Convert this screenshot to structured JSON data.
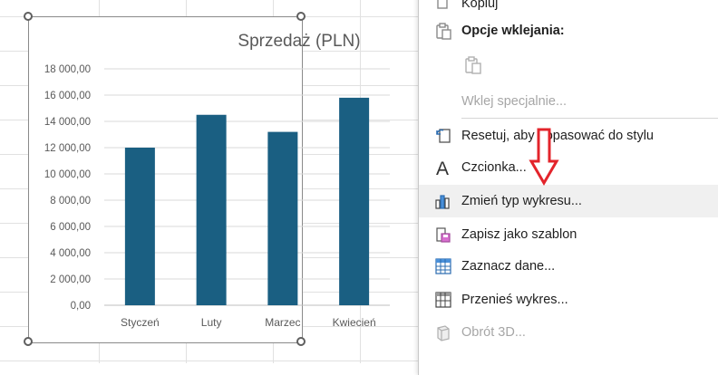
{
  "chart_data": {
    "type": "bar",
    "title": "Sprzedaż (PLN)",
    "categories": [
      "Styczeń",
      "Luty",
      "Marzec",
      "Kwiecień"
    ],
    "values": [
      12000,
      14500,
      13200,
      15800
    ],
    "ylim": [
      0,
      18000
    ],
    "yticks": [
      "0,00",
      "2 000,00",
      "4 000,00",
      "6 000,00",
      "8 000,00",
      "10 000,00",
      "12 000,00",
      "14 000,00",
      "16 000,00",
      "18 000,00"
    ],
    "grid": true,
    "bar_color": "#1a5f82"
  },
  "menu": {
    "top_partial_label": "Kopiuj",
    "paste_options_label": "Opcje wklejania:",
    "paste_special_label": "Wklej specjalnie...",
    "reset_label": "Resetuj, aby dopasować do stylu",
    "font_label": "Czcionka...",
    "change_type_label": "Zmień typ wykresu...",
    "save_template_label": "Zapisz jako szablon",
    "select_data_label": "Zaznacz dane...",
    "move_chart_label": "Przenieś wykres...",
    "rotation_label": "Obrót 3D..."
  },
  "colors": {
    "accent_arrow": "#e3242b",
    "menu_hover": "#f0f0f0"
  }
}
